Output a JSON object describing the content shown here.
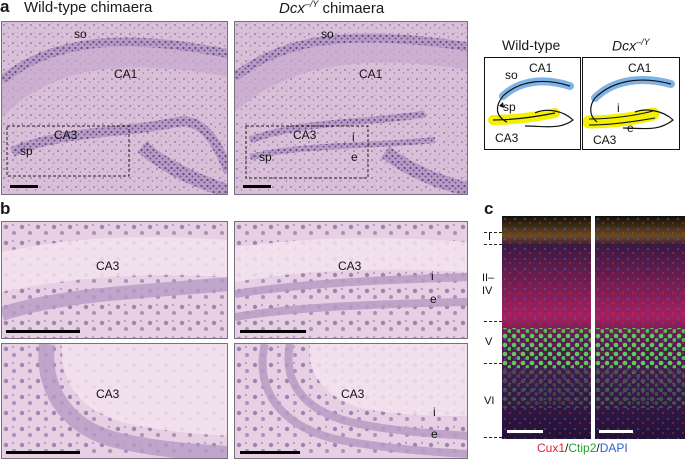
{
  "panel_a": {
    "letter": "a",
    "title_left": "Wild-type chimaera",
    "title_right_gene": "Dcx",
    "title_right_sup": "–/Y",
    "title_right_suffix": " chimaera",
    "left": {
      "so": "so",
      "ca1": "CA1",
      "ca3": "CA3",
      "sp": "sp"
    },
    "right": {
      "so": "so",
      "ca1": "CA1",
      "ca3": "CA3",
      "sp": "sp",
      "i": "i",
      "e": "e"
    }
  },
  "diagram": {
    "left_title": "Wild-type",
    "right_title_gene": "Dcx",
    "right_title_sup": "–/Y",
    "left": {
      "so": "so",
      "ca1": "CA1",
      "sp": "sp",
      "ca3": "CA3"
    },
    "right": {
      "ca1": "CA1",
      "i": "i",
      "e": "e",
      "ca3": "CA3"
    },
    "colors": {
      "so_layer": "#7fb3e6",
      "sp_layer": "#f3f000"
    }
  },
  "panel_b": {
    "letter": "b",
    "tl": {
      "ca3": "CA3"
    },
    "tr": {
      "ca3": "CA3",
      "i": "i",
      "e": "e"
    },
    "bl": {
      "ca3": "CA3"
    },
    "br": {
      "ca3": "CA3",
      "i": "i",
      "e": "e"
    }
  },
  "panel_c": {
    "letter": "c",
    "layers": [
      "I",
      "II–\nIV",
      "V",
      "VI"
    ],
    "caption": {
      "cux1": "Cux1",
      "slash1": "/",
      "ctip2": "Ctip2",
      "slash2": "/",
      "dapi": "DAPI"
    },
    "colors": {
      "cux1": "#e0203a",
      "ctip2": "#2aa02a",
      "dapi": "#2a5fd0"
    }
  }
}
